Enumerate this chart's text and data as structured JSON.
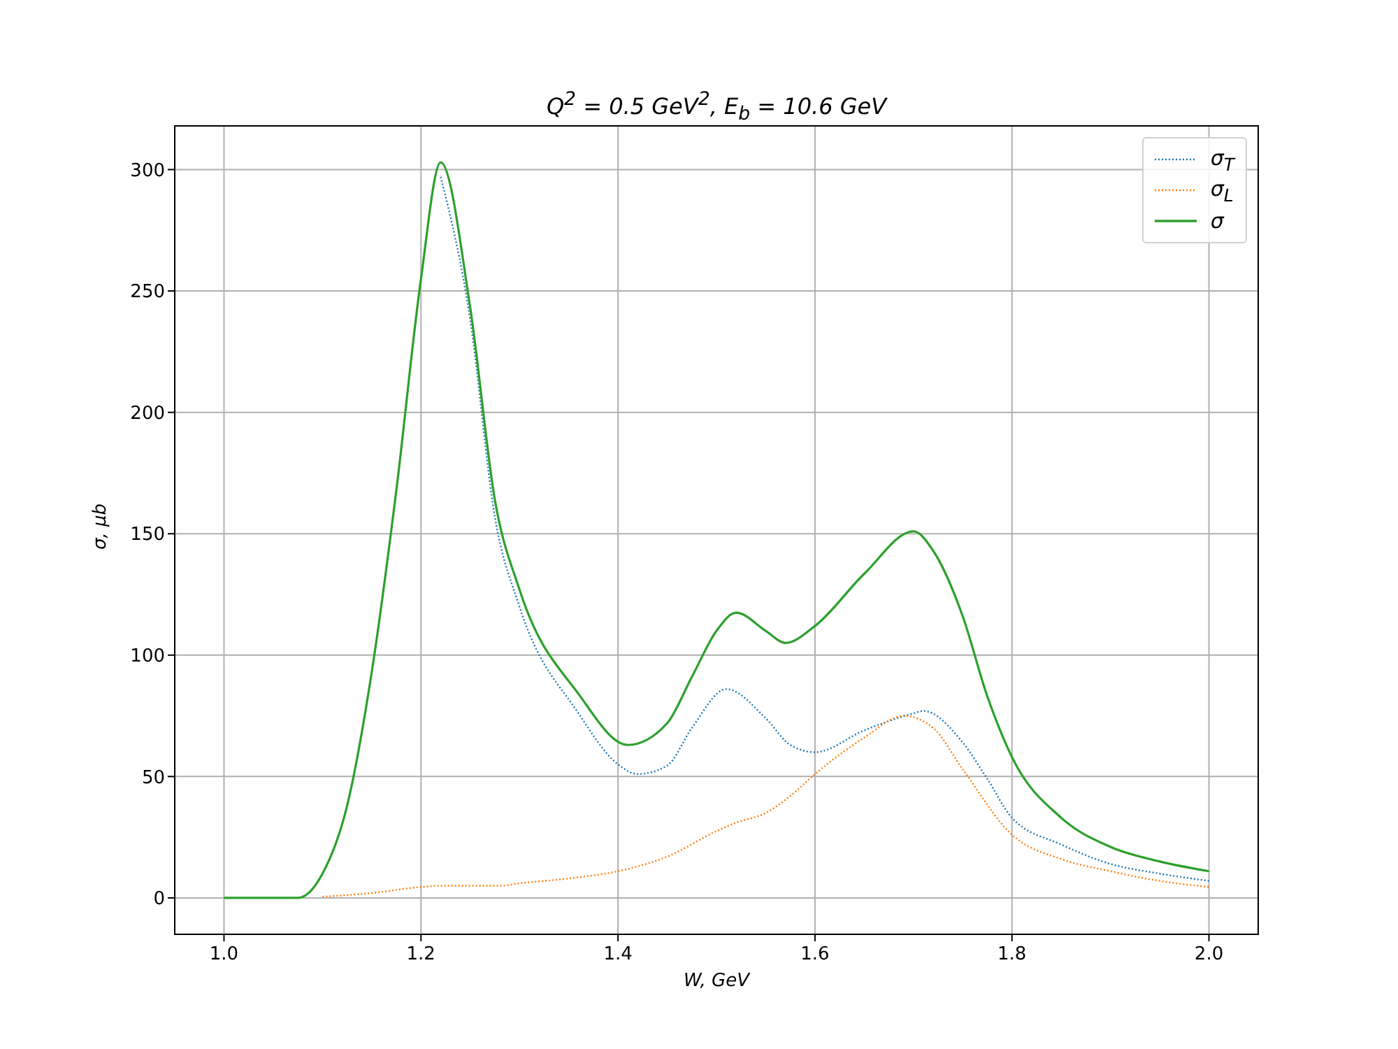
{
  "chart_data": {
    "type": "line",
    "title": "Q$^{2}$ = 0.5 GeV$^{2}$,  E$_{b}$ = 10.6 GeV",
    "xlabel": "W, GeV",
    "ylabel": "σ, μb",
    "xlim": [
      0.95,
      2.05
    ],
    "ylim": [
      -15,
      318
    ],
    "xticks": [
      {
        "value": 1,
        "label": "1.0"
      },
      {
        "value": 1.2,
        "label": "1.2"
      },
      {
        "value": 1.4,
        "label": "1.4"
      },
      {
        "value": 1.6,
        "label": "1.6"
      },
      {
        "value": 1.8,
        "label": "1.8"
      },
      {
        "value": 2,
        "label": "2.0"
      }
    ],
    "yticks": [
      0,
      50,
      100,
      150,
      200,
      250,
      300
    ],
    "grid": true,
    "legend": "top right",
    "marker": "none",
    "series": [
      {
        "name": "σ$_{T}$",
        "color": "#1f77b4",
        "line_style": "dotted",
        "x": [
          1.22,
          1.25,
          1.275,
          1.3,
          1.36,
          1.4,
          1.42,
          1.45,
          1.475,
          1.51,
          1.55,
          1.575,
          1.6,
          1.65,
          1.7,
          1.71,
          1.75,
          1.775,
          1.8,
          1.85,
          1.9,
          1.95,
          2.0
        ],
        "values": [
          297,
          238,
          157,
          120,
          76,
          55,
          51,
          54.5,
          70,
          86,
          74,
          63,
          60,
          69,
          76,
          77,
          64,
          49,
          33,
          22,
          14,
          10,
          7
        ]
      },
      {
        "name": "σ$_{L}$",
        "color": "#ff7f0e",
        "line_style": "dotted",
        "x": [
          1.1,
          1.15,
          1.2,
          1.22,
          1.25,
          1.28,
          1.3,
          1.35,
          1.4,
          1.45,
          1.5,
          1.52,
          1.55,
          1.575,
          1.6,
          1.65,
          1.69,
          1.72,
          1.75,
          1.8,
          1.85,
          1.9,
          1.95,
          2.0
        ],
        "values": [
          0.5,
          2,
          4.5,
          5,
          5,
          5,
          6,
          8,
          11,
          17,
          27.5,
          31,
          35,
          42,
          51,
          66,
          75,
          70,
          53,
          26,
          16,
          11,
          7,
          4.5
        ]
      },
      {
        "name": "σ",
        "color": "#2ca02c",
        "line_style": "solid",
        "x": [
          1.0,
          1.075,
          1.1,
          1.125,
          1.15,
          1.175,
          1.2,
          1.22,
          1.25,
          1.275,
          1.3,
          1.36,
          1.41,
          1.45,
          1.475,
          1.5,
          1.52,
          1.55,
          1.57,
          1.6,
          1.65,
          1.7,
          1.72,
          1.75,
          1.775,
          1.8,
          1.85,
          1.9,
          1.95,
          2.0
        ],
        "values": [
          0,
          0,
          10,
          38,
          93,
          168,
          255,
          303,
          243,
          164,
          127,
          84,
          63,
          72,
          91,
          110,
          117.5,
          110,
          105,
          112,
          133.5,
          151,
          143,
          116,
          83,
          58,
          33,
          21,
          15,
          11
        ]
      }
    ]
  }
}
